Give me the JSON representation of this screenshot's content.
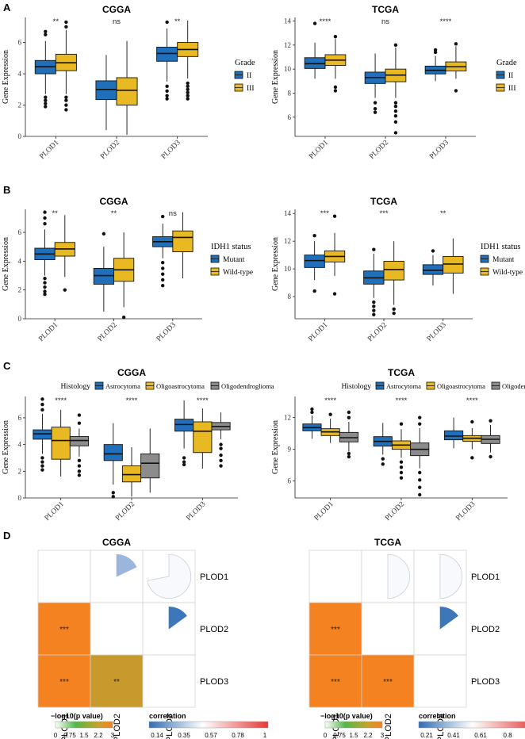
{
  "colors": {
    "blue": "#1f6fba",
    "yellow": "#e8b923",
    "gray": "#8c8c8c",
    "orange": "#f58220",
    "olive": "#c89a2e",
    "pieLight": "#9ab6dc",
    "pieBlue": "#3c78b9"
  },
  "panels": [
    {
      "label": "A"
    },
    {
      "label": "B"
    },
    {
      "label": "C"
    },
    {
      "label": "D"
    }
  ],
  "chart_data": [
    {
      "id": "A-CGGA",
      "type": "boxplot",
      "title": "CGGA",
      "ylabel": "Gene Expression",
      "categories": [
        "PLOD1",
        "PLOD2",
        "PLOD3"
      ],
      "ylim": [
        0,
        7.6
      ],
      "yticks": [
        0,
        2,
        4,
        6
      ],
      "legend": {
        "title": "Grade",
        "position": "right",
        "entries": [
          "II",
          "III"
        ]
      },
      "series": [
        {
          "name": "II",
          "color": "blue",
          "boxes": [
            {
              "q1": 4.0,
              "med": 4.45,
              "q3": 4.85,
              "wlo": 2.7,
              "whi": 6.1,
              "out": [
                6.5,
                6.7,
                2.5,
                2.3,
                2.1,
                1.9
              ]
            },
            {
              "q1": 2.35,
              "med": 3.0,
              "q3": 3.55,
              "wlo": 0.4,
              "whi": 5.2,
              "out": []
            },
            {
              "q1": 4.8,
              "med": 5.3,
              "q3": 5.7,
              "wlo": 3.5,
              "whi": 6.9,
              "out": [
                7.3,
                3.2,
                2.9,
                2.6,
                2.4
              ]
            }
          ]
        },
        {
          "name": "III",
          "color": "yellow",
          "boxes": [
            {
              "q1": 4.2,
              "med": 4.7,
              "q3": 5.25,
              "wlo": 2.7,
              "whi": 6.8,
              "out": [
                7.0,
                7.3,
                2.5,
                2.3,
                2.0,
                1.7
              ]
            },
            {
              "q1": 2.0,
              "med": 2.95,
              "q3": 3.75,
              "wlo": 0.1,
              "whi": 6.1,
              "out": []
            },
            {
              "q1": 5.1,
              "med": 5.55,
              "q3": 6.0,
              "wlo": 3.7,
              "whi": 7.4,
              "out": [
                3.4,
                3.2,
                3.0,
                2.8,
                2.6,
                2.4
              ]
            }
          ]
        }
      ],
      "annotations": [
        "**",
        "ns",
        "**"
      ]
    },
    {
      "id": "A-TCGA",
      "type": "boxplot",
      "title": "TCGA",
      "ylabel": "Gene Expression",
      "categories": [
        "PLOD1",
        "PLOD2",
        "PLOD3"
      ],
      "ylim": [
        4.4,
        14.3
      ],
      "yticks": [
        6,
        8,
        10,
        12,
        14
      ],
      "legend": {
        "title": "Grade",
        "position": "right",
        "entries": [
          "II",
          "III"
        ]
      },
      "series": [
        {
          "name": "II",
          "color": "blue",
          "boxes": [
            {
              "q1": 10.05,
              "med": 10.45,
              "q3": 10.95,
              "wlo": 9.2,
              "whi": 12.2,
              "out": [
                13.8
              ]
            },
            {
              "q1": 8.8,
              "med": 9.3,
              "q3": 9.75,
              "wlo": 7.6,
              "whi": 11.3,
              "out": [
                7.2,
                6.7,
                6.4
              ]
            },
            {
              "q1": 9.6,
              "med": 9.9,
              "q3": 10.25,
              "wlo": 9.0,
              "whi": 11.1,
              "out": [
                11.4,
                11.6
              ]
            }
          ]
        },
        {
          "name": "III",
          "color": "yellow",
          "boxes": [
            {
              "q1": 10.3,
              "med": 10.75,
              "q3": 11.2,
              "wlo": 9.2,
              "whi": 12.5,
              "out": [
                12.7,
                8.5,
                8.2
              ]
            },
            {
              "q1": 8.95,
              "med": 9.5,
              "q3": 10.0,
              "wlo": 7.6,
              "whi": 11.8,
              "out": [
                12.0,
                7.2,
                6.9,
                6.5,
                6.1,
                5.6,
                4.7
              ]
            },
            {
              "q1": 9.85,
              "med": 10.2,
              "q3": 10.6,
              "wlo": 9.2,
              "whi": 11.9,
              "out": [
                12.1,
                8.2
              ]
            }
          ]
        }
      ],
      "annotations": [
        "****",
        "ns",
        "****"
      ]
    },
    {
      "id": "B-CGGA",
      "type": "boxplot",
      "title": "CGGA",
      "ylabel": "Gene Expression",
      "categories": [
        "PLOD1",
        "PLOD2",
        "PLOD3"
      ],
      "ylim": [
        0,
        7.6
      ],
      "yticks": [
        0,
        2,
        4,
        6
      ],
      "legend": {
        "title": "IDH1 status",
        "position": "right",
        "entries": [
          "Mutant",
          "Wild-type"
        ]
      },
      "series": [
        {
          "name": "Mutant",
          "color": "blue",
          "boxes": [
            {
              "q1": 4.1,
              "med": 4.5,
              "q3": 4.9,
              "wlo": 3.0,
              "whi": 6.2,
              "out": [
                6.6,
                7.0,
                7.4,
                2.8,
                2.5,
                2.2,
                1.9,
                1.7
              ]
            },
            {
              "q1": 2.4,
              "med": 3.0,
              "q3": 3.5,
              "wlo": 0.5,
              "whi": 5.0,
              "out": [
                5.9
              ]
            },
            {
              "q1": 5.0,
              "med": 5.35,
              "q3": 5.7,
              "wlo": 4.2,
              "whi": 6.6,
              "out": [
                7.1,
                3.9,
                3.5,
                3.1,
                2.7,
                2.3
              ]
            }
          ]
        },
        {
          "name": "Wild-type",
          "color": "yellow",
          "boxes": [
            {
              "q1": 4.35,
              "med": 4.85,
              "q3": 5.3,
              "wlo": 2.9,
              "whi": 7.2,
              "out": [
                2.0
              ]
            },
            {
              "q1": 2.6,
              "med": 3.4,
              "q3": 4.2,
              "wlo": 0.8,
              "whi": 6.0,
              "out": [
                0.1
              ]
            },
            {
              "q1": 4.65,
              "med": 5.65,
              "q3": 6.1,
              "wlo": 2.8,
              "whi": 7.4,
              "out": []
            }
          ]
        }
      ],
      "annotations": [
        "**",
        "**",
        "ns"
      ]
    },
    {
      "id": "B-TCGA",
      "type": "boxplot",
      "title": "TCGA",
      "ylabel": "Gene Expression",
      "categories": [
        "PLOD1",
        "PLOD2",
        "PLOD3"
      ],
      "ylim": [
        6.4,
        14.3
      ],
      "yticks": [
        8,
        10,
        12,
        14
      ],
      "legend": {
        "title": "IDH1 status",
        "position": "right",
        "entries": [
          "Mutant",
          "Wild-type"
        ]
      },
      "series": [
        {
          "name": "Mutant",
          "color": "blue",
          "boxes": [
            {
              "q1": 10.1,
              "med": 10.6,
              "q3": 11.0,
              "wlo": 9.2,
              "whi": 12.0,
              "out": [
                12.4,
                8.4
              ]
            },
            {
              "q1": 8.9,
              "med": 9.35,
              "q3": 9.85,
              "wlo": 7.9,
              "whi": 11.1,
              "out": [
                11.4,
                7.6,
                7.3,
                7.0,
                6.7
              ]
            },
            {
              "q1": 9.6,
              "med": 9.9,
              "q3": 10.3,
              "wlo": 8.8,
              "whi": 11.0,
              "out": [
                11.3
              ]
            }
          ]
        },
        {
          "name": "Wild-type",
          "color": "yellow",
          "boxes": [
            {
              "q1": 10.5,
              "med": 10.9,
              "q3": 11.3,
              "wlo": 9.5,
              "whi": 12.6,
              "out": [
                13.8,
                8.2
              ]
            },
            {
              "q1": 9.2,
              "med": 9.95,
              "q3": 10.55,
              "wlo": 7.4,
              "whi": 12.0,
              "out": [
                7.1,
                6.8
              ]
            },
            {
              "q1": 9.7,
              "med": 10.35,
              "q3": 10.9,
              "wlo": 8.2,
              "whi": 12.2,
              "out": []
            }
          ]
        }
      ],
      "annotations": [
        "***",
        "***",
        "**"
      ]
    },
    {
      "id": "C-CGGA",
      "type": "boxplot",
      "title": "CGGA",
      "ylabel": "Gene Expression",
      "categories": [
        "PLOD1",
        "PLOD2",
        "PLOD3"
      ],
      "ylim": [
        0,
        7.6
      ],
      "yticks": [
        0,
        2,
        4,
        6
      ],
      "legend": {
        "title": "Histology",
        "position": "top",
        "entries": [
          "Astrocytoma",
          "Oligoastrocytoma",
          "Oligodendroglioma"
        ]
      },
      "series": [
        {
          "name": "Astrocytoma",
          "color": "blue",
          "boxes": [
            {
              "q1": 4.4,
              "med": 4.8,
              "q3": 5.1,
              "wlo": 3.3,
              "whi": 6.3,
              "out": [
                6.6,
                7.0,
                7.4,
                3.0,
                2.7,
                2.4,
                2.1
              ]
            },
            {
              "q1": 2.8,
              "med": 3.3,
              "q3": 4.0,
              "wlo": 1.0,
              "whi": 5.6,
              "out": [
                0.4,
                0.1
              ]
            },
            {
              "q1": 5.0,
              "med": 5.5,
              "q3": 5.9,
              "wlo": 3.7,
              "whi": 7.3,
              "out": [
                3.0,
                2.7,
                2.5
              ]
            }
          ]
        },
        {
          "name": "Oligoastrocytoma",
          "color": "yellow",
          "boxes": [
            {
              "q1": 2.9,
              "med": 4.3,
              "q3": 5.3,
              "wlo": 1.6,
              "whi": 6.6,
              "out": []
            },
            {
              "q1": 1.2,
              "med": 1.75,
              "q3": 2.4,
              "wlo": 0.1,
              "whi": 3.8,
              "out": []
            },
            {
              "q1": 3.4,
              "med": 5.0,
              "q3": 5.7,
              "wlo": 2.2,
              "whi": 6.7,
              "out": []
            }
          ]
        },
        {
          "name": "Oligodendroglioma",
          "color": "gray",
          "boxes": [
            {
              "q1": 3.9,
              "med": 4.3,
              "q3": 4.6,
              "wlo": 3.1,
              "whi": 5.2,
              "out": [
                5.6,
                6.2,
                2.8,
                2.4,
                2.0,
                1.7
              ]
            },
            {
              "q1": 1.5,
              "med": 2.6,
              "q3": 3.3,
              "wlo": 0.4,
              "whi": 5.2,
              "out": []
            },
            {
              "q1": 5.1,
              "med": 5.35,
              "q3": 5.65,
              "wlo": 4.4,
              "whi": 6.4,
              "out": [
                4.0,
                3.7,
                3.2,
                2.8,
                2.4
              ]
            }
          ]
        }
      ],
      "annotations": [
        "****",
        "****",
        "****"
      ]
    },
    {
      "id": "C-TCGA",
      "type": "boxplot",
      "title": "TCGA",
      "ylabel": "Gene Expression",
      "categories": [
        "PLOD1",
        "PLOD2",
        "PLOD3"
      ],
      "ylim": [
        4.4,
        14.0
      ],
      "yticks": [
        6,
        9,
        12
      ],
      "legend": {
        "title": "Histology",
        "position": "top",
        "entries": [
          "Astrocytoma",
          "Oligoastrocytoma",
          "Oligodendroglioma"
        ]
      },
      "series": [
        {
          "name": "Astrocytoma",
          "color": "blue",
          "boxes": [
            {
              "q1": 10.75,
              "med": 11.05,
              "q3": 11.4,
              "wlo": 10.0,
              "whi": 12.2,
              "out": [
                12.5,
                12.8
              ]
            },
            {
              "q1": 9.3,
              "med": 9.75,
              "q3": 10.2,
              "wlo": 8.5,
              "whi": 11.5,
              "out": [
                8.1,
                7.6
              ]
            },
            {
              "q1": 9.9,
              "med": 10.25,
              "q3": 10.75,
              "wlo": 9.1,
              "whi": 12.0,
              "out": []
            }
          ]
        },
        {
          "name": "Oligoastrocytoma",
          "color": "yellow",
          "boxes": [
            {
              "q1": 10.3,
              "med": 10.65,
              "q3": 10.95,
              "wlo": 9.6,
              "whi": 11.9,
              "out": [
                12.3
              ]
            },
            {
              "q1": 9.0,
              "med": 9.4,
              "q3": 9.8,
              "wlo": 8.2,
              "whi": 10.9,
              "out": [
                11.4,
                7.8,
                7.3,
                6.8,
                6.3
              ]
            },
            {
              "q1": 9.75,
              "med": 10.05,
              "q3": 10.3,
              "wlo": 9.0,
              "whi": 11.0,
              "out": [
                11.6,
                8.2
              ]
            }
          ]
        },
        {
          "name": "Oligodendroglioma",
          "color": "gray",
          "boxes": [
            {
              "q1": 9.7,
              "med": 10.1,
              "q3": 10.6,
              "wlo": 8.8,
              "whi": 11.6,
              "out": [
                12.0,
                12.5,
                8.6,
                8.3
              ]
            },
            {
              "q1": 8.4,
              "med": 9.0,
              "q3": 9.6,
              "wlo": 7.2,
              "whi": 11.0,
              "out": [
                11.4,
                12.0,
                6.8,
                6.1,
                5.4,
                4.7
              ]
            },
            {
              "q1": 9.55,
              "med": 9.95,
              "q3": 10.3,
              "wlo": 8.7,
              "whi": 11.3,
              "out": [
                11.7,
                8.3
              ]
            }
          ]
        }
      ],
      "annotations": [
        "****",
        "****",
        "****"
      ]
    },
    {
      "id": "D-CGGA",
      "type": "heatmap",
      "title": "CGGA",
      "genes": [
        "PLOD1",
        "PLOD2",
        "PLOD3"
      ],
      "lower": [
        {
          "row": "PLOD2",
          "col": "PLOD1",
          "color": "orange",
          "label": "***"
        },
        {
          "row": "PLOD3",
          "col": "PLOD1",
          "color": "orange",
          "label": "***"
        },
        {
          "row": "PLOD3",
          "col": "PLOD2",
          "color": "olive",
          "label": "**"
        }
      ],
      "upper": [
        {
          "row": "PLOD1",
          "col": "PLOD2",
          "color": "pieLight",
          "fraction": 0.18,
          "fill": true
        },
        {
          "row": "PLOD1",
          "col": "PLOD3",
          "color": "pieLight",
          "fraction": 0.72,
          "fill": false
        },
        {
          "row": "PLOD2",
          "col": "PLOD3",
          "color": "pieBlue",
          "fraction": 0.15,
          "fill": true
        }
      ],
      "pvalue_legend": {
        "title": "−log10(p value)",
        "ticks": [
          "0",
          "0.75",
          "1.5",
          "2.2",
          "3"
        ]
      },
      "corr_legend": {
        "title": "correlation",
        "ticks": [
          "0.14",
          "0.35",
          "0.57",
          "0.78",
          "1"
        ]
      }
    },
    {
      "id": "D-TCGA",
      "type": "heatmap",
      "title": "TCGA",
      "genes": [
        "PLOD1",
        "PLOD2",
        "PLOD3"
      ],
      "lower": [
        {
          "row": "PLOD2",
          "col": "PLOD1",
          "color": "orange",
          "label": "***"
        },
        {
          "row": "PLOD3",
          "col": "PLOD1",
          "color": "orange",
          "label": "***"
        },
        {
          "row": "PLOD3",
          "col": "PLOD2",
          "color": "orange",
          "label": "***"
        }
      ],
      "upper": [
        {
          "row": "PLOD1",
          "col": "PLOD2",
          "color": "pieLight",
          "fraction": 0.5,
          "fill": false
        },
        {
          "row": "PLOD1",
          "col": "PLOD3",
          "color": "pieLight",
          "fraction": 0.5,
          "fill": false
        },
        {
          "row": "PLOD2",
          "col": "PLOD3",
          "color": "pieBlue",
          "fraction": 0.15,
          "fill": true
        }
      ],
      "pvalue_legend": {
        "title": "−log10(p value)",
        "ticks": [
          "0",
          "0.75",
          "1.5",
          "2.2",
          "3"
        ]
      },
      "corr_legend": {
        "title": "correlation",
        "ticks": [
          "0.21",
          "0.41",
          "0.61",
          "0.8",
          "1"
        ]
      }
    }
  ]
}
